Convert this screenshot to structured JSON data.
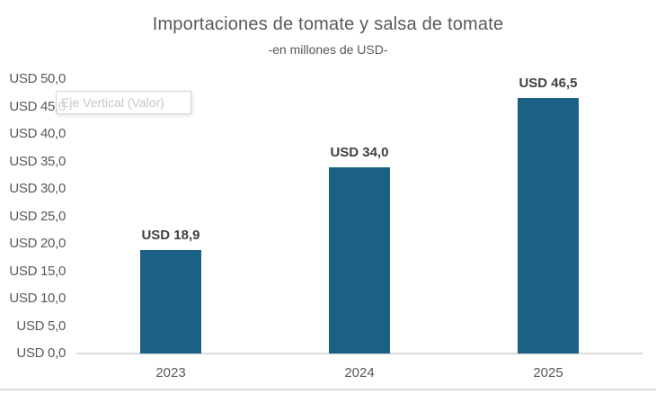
{
  "chart_data": {
    "type": "bar",
    "title": "Importaciones de tomate y salsa de tomate",
    "subtitle": "-en millones de USD-",
    "categories": [
      "2023",
      "2024",
      "2025"
    ],
    "values": [
      18.9,
      34.0,
      46.5
    ],
    "value_labels": [
      "USD 18,9",
      "USD 34,0",
      "USD 46,5"
    ],
    "xlabel": "",
    "ylabel": "",
    "ylim": [
      0,
      50
    ],
    "y_tick_values": [
      0,
      5,
      10,
      15,
      20,
      25,
      30,
      35,
      40,
      45,
      50
    ],
    "y_tick_labels": [
      "USD 0,0",
      "USD 5,0",
      "USD 10,0",
      "USD 15,0",
      "USD 20,0",
      "USD 25,0",
      "USD 30,0",
      "USD 35,0",
      "USD 40,0",
      "USD 45,0",
      "USD 50,0"
    ],
    "grid": false,
    "legend": false,
    "bar_color": "#1A6184"
  },
  "tooltip": {
    "label": "Eje Vertical (Valor)"
  },
  "colors": {
    "bar": "#1A6184",
    "title_text": "#595959",
    "data_label_text": "#404040",
    "axis_line": "#D9D9D9",
    "tooltip_text": "#C7C7C7"
  }
}
